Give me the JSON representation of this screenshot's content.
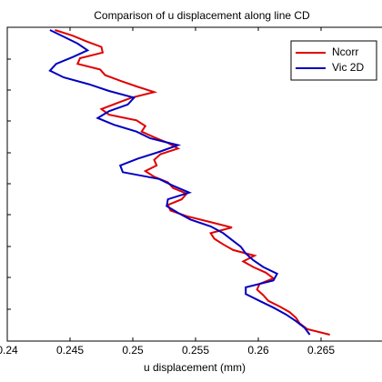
{
  "chart_data": {
    "type": "line",
    "title": "Comparison of u displacement along line CD",
    "xlabel": "u displacement (mm)",
    "xlim": [
      0.24,
      0.27
    ],
    "xticks": [
      0.24,
      0.245,
      0.25,
      0.255,
      0.26,
      0.265
    ],
    "legend": "upper right",
    "series": [
      {
        "name": "Ncorr",
        "color": "#e00000",
        "values": [
          0.2438,
          0.2452,
          0.2463,
          0.2475,
          0.2476,
          0.2458,
          0.2456,
          0.2474,
          0.2478,
          0.249,
          0.2503,
          0.2517,
          0.2499,
          0.2487,
          0.2475,
          0.2481,
          0.2503,
          0.251,
          0.2507,
          0.2517,
          0.2528,
          0.2536,
          0.2522,
          0.2517,
          0.2519,
          0.251,
          0.2517,
          0.2528,
          0.2532,
          0.2543,
          0.2539,
          0.2528,
          0.253,
          0.2543,
          0.2561,
          0.2579,
          0.2562,
          0.2565,
          0.2572,
          0.258,
          0.2597,
          0.2588,
          0.2596,
          0.2606,
          0.2612,
          0.2601,
          0.2599,
          0.2604,
          0.2608,
          0.2617,
          0.2625,
          0.263,
          0.2633,
          0.2639,
          0.2657
        ]
      },
      {
        "name": "Vic 2D",
        "color": "#0000c0",
        "values": [
          0.2434,
          0.2445,
          0.2456,
          0.2464,
          0.2452,
          0.2439,
          0.2434,
          0.2445,
          0.2465,
          0.2481,
          0.2501,
          0.2496,
          0.2481,
          0.2472,
          0.2485,
          0.2503,
          0.2514,
          0.2536,
          0.2521,
          0.2504,
          0.249,
          0.2492,
          0.2521,
          0.2532,
          0.2545,
          0.2528,
          0.2527,
          0.2536,
          0.2546,
          0.2562,
          0.2572,
          0.2579,
          0.2586,
          0.259,
          0.2596,
          0.2604,
          0.2615,
          0.2612,
          0.259,
          0.259,
          0.2601,
          0.2612,
          0.2622,
          0.263,
          0.2637,
          0.2641
        ]
      }
    ]
  }
}
